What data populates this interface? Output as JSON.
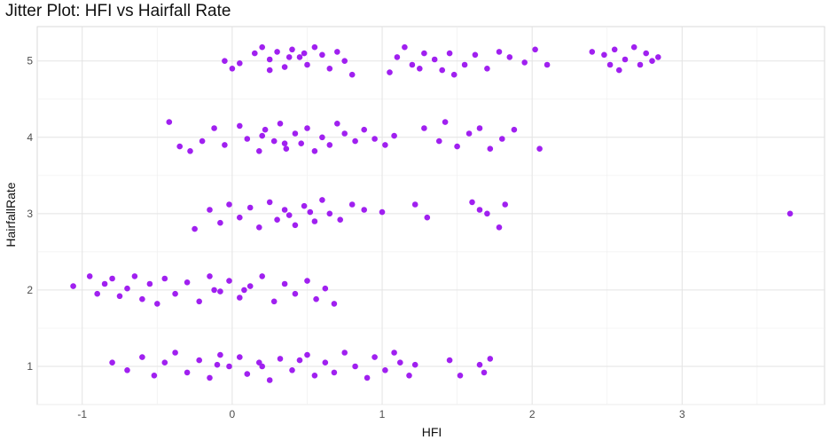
{
  "chart_data": {
    "type": "scatter",
    "title": "Jitter Plot: HFI vs Hairfall Rate",
    "xlabel": "HFI",
    "ylabel": "HairfallRate",
    "xlim": [
      -1.3,
      3.95
    ],
    "ylim": [
      0.5,
      5.45
    ],
    "x_ticks": [
      "-1",
      "0",
      "1",
      "2",
      "3"
    ],
    "y_ticks": [
      "1",
      "2",
      "3",
      "4",
      "5"
    ],
    "grid": true,
    "point_color": "#a020f0",
    "series": [
      {
        "points": [
          [
            -0.05,
            5.0
          ],
          [
            0.0,
            4.9
          ],
          [
            0.05,
            4.97
          ],
          [
            0.15,
            5.1
          ],
          [
            0.2,
            5.18
          ],
          [
            0.25,
            5.02
          ],
          [
            0.3,
            5.12
          ],
          [
            0.35,
            4.92
          ],
          [
            0.4,
            5.15
          ],
          [
            0.45,
            5.05
          ],
          [
            0.5,
            4.95
          ],
          [
            0.55,
            5.18
          ],
          [
            0.6,
            5.08
          ],
          [
            0.65,
            4.9
          ],
          [
            0.7,
            5.12
          ],
          [
            0.75,
            5.0
          ],
          [
            0.8,
            4.82
          ],
          [
            0.25,
            4.88
          ],
          [
            0.38,
            5.05
          ],
          [
            0.48,
            5.1
          ],
          [
            1.05,
            4.85
          ],
          [
            1.1,
            5.05
          ],
          [
            1.15,
            5.18
          ],
          [
            1.2,
            4.95
          ],
          [
            1.28,
            5.1
          ],
          [
            1.35,
            5.02
          ],
          [
            1.4,
            4.88
          ],
          [
            1.45,
            5.1
          ],
          [
            1.55,
            4.95
          ],
          [
            1.62,
            5.08
          ],
          [
            1.7,
            4.9
          ],
          [
            1.78,
            5.12
          ],
          [
            1.85,
            5.05
          ],
          [
            1.95,
            4.98
          ],
          [
            2.02,
            5.15
          ],
          [
            2.1,
            4.95
          ],
          [
            2.4,
            5.12
          ],
          [
            2.48,
            5.08
          ],
          [
            2.52,
            4.95
          ],
          [
            2.55,
            5.15
          ],
          [
            2.58,
            4.88
          ],
          [
            2.62,
            5.02
          ],
          [
            2.68,
            5.18
          ],
          [
            2.72,
            4.95
          ],
          [
            2.76,
            5.1
          ],
          [
            2.8,
            5.0
          ],
          [
            2.84,
            5.05
          ],
          [
            1.48,
            4.82
          ],
          [
            1.25,
            4.9
          ],
          [
            -0.42,
            4.2
          ],
          [
            -0.35,
            3.88
          ],
          [
            -0.28,
            3.82
          ],
          [
            -0.2,
            3.95
          ],
          [
            -0.12,
            4.12
          ],
          [
            -0.05,
            3.9
          ],
          [
            0.05,
            4.15
          ],
          [
            0.1,
            3.98
          ],
          [
            0.18,
            3.82
          ],
          [
            0.22,
            4.1
          ],
          [
            0.28,
            3.95
          ],
          [
            0.32,
            4.18
          ],
          [
            0.36,
            3.85
          ],
          [
            0.42,
            4.05
          ],
          [
            0.46,
            3.92
          ],
          [
            0.5,
            4.12
          ],
          [
            0.55,
            3.82
          ],
          [
            0.6,
            4.0
          ],
          [
            0.65,
            3.9
          ],
          [
            0.7,
            4.18
          ],
          [
            0.75,
            4.05
          ],
          [
            0.82,
            3.95
          ],
          [
            0.88,
            4.1
          ],
          [
            0.95,
            3.98
          ],
          [
            1.02,
            3.9
          ],
          [
            1.08,
            4.02
          ],
          [
            1.28,
            4.12
          ],
          [
            1.38,
            3.95
          ],
          [
            1.42,
            4.2
          ],
          [
            1.5,
            3.88
          ],
          [
            1.58,
            4.05
          ],
          [
            1.65,
            4.12
          ],
          [
            1.72,
            3.85
          ],
          [
            1.8,
            3.98
          ],
          [
            1.88,
            4.1
          ],
          [
            2.05,
            3.85
          ],
          [
            0.2,
            4.02
          ],
          [
            0.35,
            3.92
          ],
          [
            -0.25,
            2.8
          ],
          [
            -0.15,
            3.05
          ],
          [
            -0.08,
            2.88
          ],
          [
            -0.02,
            3.12
          ],
          [
            0.05,
            2.95
          ],
          [
            0.12,
            3.08
          ],
          [
            0.18,
            2.82
          ],
          [
            0.25,
            3.15
          ],
          [
            0.3,
            2.92
          ],
          [
            0.35,
            3.05
          ],
          [
            0.42,
            2.85
          ],
          [
            0.48,
            3.1
          ],
          [
            0.55,
            2.9
          ],
          [
            0.6,
            3.18
          ],
          [
            0.65,
            3.0
          ],
          [
            0.72,
            2.92
          ],
          [
            0.8,
            3.12
          ],
          [
            0.88,
            3.05
          ],
          [
            1.0,
            3.02
          ],
          [
            1.22,
            3.12
          ],
          [
            1.3,
            2.95
          ],
          [
            1.6,
            3.15
          ],
          [
            1.7,
            3.0
          ],
          [
            1.78,
            2.82
          ],
          [
            1.82,
            3.12
          ],
          [
            1.65,
            3.05
          ],
          [
            0.38,
            2.98
          ],
          [
            0.52,
            3.02
          ],
          [
            3.72,
            3.0
          ],
          [
            -1.06,
            2.05
          ],
          [
            -0.95,
            2.18
          ],
          [
            -0.9,
            1.95
          ],
          [
            -0.85,
            2.08
          ],
          [
            -0.8,
            2.15
          ],
          [
            -0.75,
            1.92
          ],
          [
            -0.7,
            2.02
          ],
          [
            -0.65,
            2.18
          ],
          [
            -0.6,
            1.88
          ],
          [
            -0.55,
            2.08
          ],
          [
            -0.5,
            1.82
          ],
          [
            -0.45,
            2.15
          ],
          [
            -0.38,
            1.95
          ],
          [
            -0.3,
            2.1
          ],
          [
            -0.22,
            1.85
          ],
          [
            -0.15,
            2.18
          ],
          [
            -0.08,
            1.98
          ],
          [
            -0.02,
            2.12
          ],
          [
            0.05,
            1.9
          ],
          [
            0.12,
            2.05
          ],
          [
            0.2,
            2.18
          ],
          [
            0.28,
            1.85
          ],
          [
            0.35,
            2.08
          ],
          [
            0.42,
            1.95
          ],
          [
            0.5,
            2.12
          ],
          [
            0.56,
            1.88
          ],
          [
            0.62,
            2.02
          ],
          [
            0.68,
            1.82
          ],
          [
            -0.12,
            2.0
          ],
          [
            0.08,
            2.0
          ],
          [
            -0.8,
            1.05
          ],
          [
            -0.7,
            0.95
          ],
          [
            -0.6,
            1.12
          ],
          [
            -0.52,
            0.88
          ],
          [
            -0.45,
            1.05
          ],
          [
            -0.38,
            1.18
          ],
          [
            -0.3,
            0.92
          ],
          [
            -0.22,
            1.08
          ],
          [
            -0.15,
            0.85
          ],
          [
            -0.08,
            1.15
          ],
          [
            -0.02,
            1.0
          ],
          [
            0.05,
            1.12
          ],
          [
            0.1,
            0.9
          ],
          [
            0.18,
            1.05
          ],
          [
            0.25,
            0.82
          ],
          [
            0.32,
            1.1
          ],
          [
            0.4,
            0.95
          ],
          [
            0.5,
            1.15
          ],
          [
            0.55,
            0.88
          ],
          [
            0.62,
            1.05
          ],
          [
            0.68,
            0.92
          ],
          [
            0.75,
            1.18
          ],
          [
            0.82,
            1.0
          ],
          [
            0.9,
            0.85
          ],
          [
            0.95,
            1.12
          ],
          [
            1.02,
            0.95
          ],
          [
            1.08,
            1.18
          ],
          [
            1.12,
            1.05
          ],
          [
            1.18,
            0.88
          ],
          [
            1.22,
            1.02
          ],
          [
            1.45,
            1.08
          ],
          [
            1.52,
            0.88
          ],
          [
            1.65,
            1.02
          ],
          [
            1.68,
            0.92
          ],
          [
            1.72,
            1.1
          ],
          [
            0.2,
            1.0
          ],
          [
            -0.1,
            1.02
          ],
          [
            0.45,
            1.08
          ]
        ]
      }
    ]
  }
}
